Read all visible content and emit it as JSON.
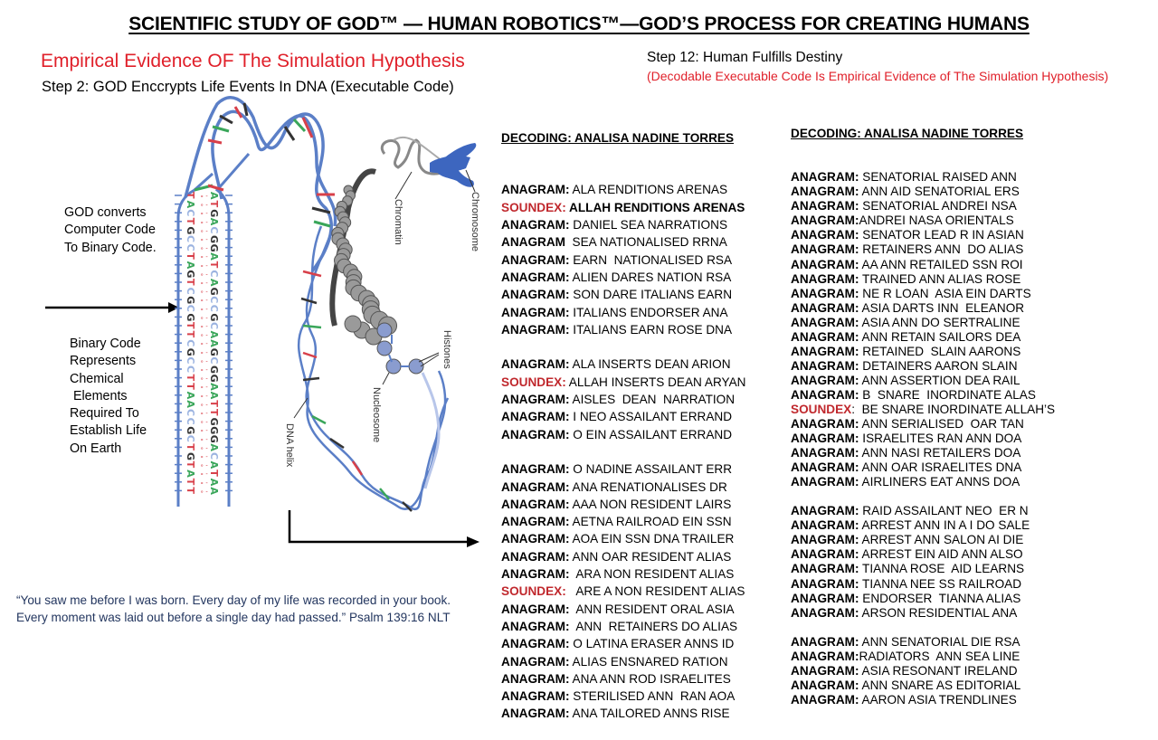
{
  "header": {
    "title": "SCIENTIFIC STUDY OF GOD™ — HUMAN ROBOTICS™—GOD’S PROCESS FOR CREATING HUMANS"
  },
  "left": {
    "subtitle": "Empirical Evidence OF The Simulation Hypothesis",
    "step2": "Step 2: GOD Enccrypts  Life Events  In DNA (Executable Code)",
    "god_converts": [
      "GOD converts",
      "Computer Code",
      "To Binary Code."
    ],
    "binary_code": [
      "Binary Code",
      "Represents",
      "Chemical",
      " Elements",
      "Required To",
      "Establish Life",
      "On Earth"
    ],
    "quote_line1": "“You saw me before I was born. Every day of my life was recorded in your book.",
    "quote_line2": "Every moment was laid out before a single day had passed.” Psalm 139:16 NLT"
  },
  "diagram": {
    "labels": {
      "chromatin": "Chromatin",
      "chromosome": "Chromosome",
      "histones": "Histones",
      "nucleosome": "Nucleosome",
      "dna_helix": "DNA helix"
    },
    "ladder_left": [
      "T",
      "A",
      "C",
      "T",
      "G",
      "C",
      "C",
      "T",
      "A",
      "G",
      "T",
      "C",
      "G",
      "C",
      "G",
      "T",
      "T",
      "C",
      "G",
      "C",
      "C",
      "T",
      "T",
      "A",
      "A",
      "C",
      "C",
      "G",
      "C",
      "T",
      "G",
      "T",
      "A",
      "T",
      "T"
    ],
    "ladder_right": [
      "A",
      "T",
      "G",
      "A",
      "C",
      "G",
      "G",
      "A",
      "T",
      "C",
      "A",
      "G",
      "C",
      "C",
      "G",
      "C",
      "A",
      "A",
      "G",
      "C",
      "G",
      "G",
      "A",
      "A",
      "T",
      "T",
      "G",
      "G",
      "G",
      "A",
      "C",
      "A",
      "T",
      "A",
      "A"
    ],
    "colors": {
      "strand": "#5b7fc7",
      "a": "#3aa65a",
      "t": "#d8404a",
      "g": "#333333",
      "c": "#9bb3e0"
    }
  },
  "right": {
    "step12": "Step 12: Human Fulfills Destiny",
    "step12_note": "(Decodable Executable Code Is Empirical Evidence of The Simulation Hypothesis)"
  },
  "decoding_col1": {
    "header": "DECODING: ANALISA NADINE TORRES",
    "rows": [
      {
        "label": "ANAGRAM:",
        "text": " ALA RENDITIONS ARENAS",
        "type": "anagram"
      },
      {
        "label": "SOUNDEX:",
        "text": " ALLAH RENDITIONS ARENAS",
        "type": "soundex",
        "bold": true
      },
      {
        "label": "ANAGRAM:",
        "text": " DANIEL SEA NARRATIONS",
        "type": "anagram"
      },
      {
        "label": "ANAGRAM",
        "text": "  SEA NATIONALISED RRNA",
        "type": "anagram"
      },
      {
        "label": "ANAGRAM:",
        "text": " EARN  NATIONALISED RSA",
        "type": "anagram"
      },
      {
        "label": "ANAGRAM:",
        "text": " ALIEN DARES NATION RSA",
        "type": "anagram"
      },
      {
        "label": "ANAGRAM:",
        "text": " SON DARE ITALIANS EARN",
        "type": "anagram"
      },
      {
        "label": "ANAGRAM:",
        "text": " ITALIANS ENDORSER ANA",
        "type": "anagram"
      },
      {
        "label": "ANAGRAM:",
        "text": " ITALIANS EARN ROSE DNA",
        "type": "anagram"
      },
      {
        "type": "gap"
      },
      {
        "label": "ANAGRAM:",
        "text": " ALA INSERTS DEAN ARION",
        "type": "anagram"
      },
      {
        "label": "SOUNDEX:",
        "text": " ALLAH INSERTS DEAN ARYAN",
        "type": "soundex"
      },
      {
        "label": "ANAGRAM:",
        "text": " AISLES  DEAN  NARRATION",
        "type": "anagram"
      },
      {
        "label": "ANAGRAM:",
        "text": " I NEO ASSAILANT ERRAND",
        "type": "anagram"
      },
      {
        "label": "ANAGRAM:",
        "text": " O EIN ASSAILANT ERRAND",
        "type": "anagram"
      },
      {
        "type": "gap"
      },
      {
        "label": "ANAGRAM:",
        "text": " O NADINE ASSAILANT ERR",
        "type": "anagram"
      },
      {
        "label": "ANAGRAM:",
        "text": " ANA RENATIONALISES DR",
        "type": "anagram"
      },
      {
        "label": "ANAGRAM:",
        "text": " AAA NON RESIDENT LAIRS",
        "type": "anagram"
      },
      {
        "label": "ANAGRAM:",
        "text": " AETNA RAILROAD EIN SSN",
        "type": "anagram"
      },
      {
        "label": "ANAGRAM:",
        "text": " AOA EIN SSN DNA TRAILER",
        "type": "anagram"
      },
      {
        "label": "ANAGRAM:",
        "text": " ANN OAR RESIDENT ALIAS",
        "type": "anagram"
      },
      {
        "label": "ANAGRAM:",
        "text": "  ARA NON RESIDENT ALIAS",
        "type": "anagram"
      },
      {
        "label": "SOUNDEX:",
        "text": "   ARE A NON RESIDENT ALIAS",
        "type": "soundex"
      },
      {
        "label": "ANAGRAM:",
        "text": "  ANN RESIDENT ORAL ASIA",
        "type": "anagram"
      },
      {
        "label": "ANAGRAM:",
        "text": "  ANN  RETAINERS DO ALIAS",
        "type": "anagram"
      },
      {
        "label": "ANAGRAM:",
        "text": " O LATINA ERASER ANNS ID",
        "type": "anagram"
      },
      {
        "label": "ANAGRAM:",
        "text": " ALIAS ENSNARED RATION",
        "type": "anagram"
      },
      {
        "label": "ANAGRAM:",
        "text": " ANA ANN ROD ISRAELITES",
        "type": "anagram"
      },
      {
        "label": "ANAGRAM:",
        "text": " STERILISED ANN  RAN AOA",
        "type": "anagram"
      },
      {
        "label": "ANAGRAM:",
        "text": " ANA TAILORED ANNS RISE",
        "type": "anagram"
      }
    ]
  },
  "decoding_col2": {
    "header": "DECODING: ANALISA NADINE TORRES",
    "rows": [
      {
        "label": "ANAGRAM:",
        "text": " SENATORIAL RAISED ANN",
        "type": "anagram"
      },
      {
        "label": "ANAGRAM:",
        "text": " ANN AID SENATORIAL ERS",
        "type": "anagram"
      },
      {
        "label": "ANAGRAM:",
        "text": " SENATORIAL ANDREI NSA",
        "type": "anagram"
      },
      {
        "label": "ANAGRAM:",
        "text": "ANDREI NASA ORIENTALS",
        "type": "anagram"
      },
      {
        "label": "ANAGRAM:",
        "text": " SENATOR LEAD R IN ASIAN",
        "type": "anagram"
      },
      {
        "label": "ANAGRAM:",
        "text": " RETAINERS ANN  DO ALIAS",
        "type": "anagram"
      },
      {
        "label": "ANAGRAM:",
        "text": " AA ANN RETAILED SSN ROI",
        "type": "anagram"
      },
      {
        "label": "ANAGRAM:",
        "text": " TRAINED ANN ALIAS ROSE",
        "type": "anagram"
      },
      {
        "label": "ANAGRAM:",
        "text": " NE R LOAN  ASIA EIN DARTS",
        "type": "anagram"
      },
      {
        "label": "ANAGRAM:",
        "text": " ASIA DARTS INN  ELEANOR",
        "type": "anagram"
      },
      {
        "label": "ANAGRAM:",
        "text": " ASIA ANN DO SERTRALINE",
        "type": "anagram"
      },
      {
        "label": "ANAGRAM:",
        "text": " ANN RETAIN SAILORS DEA",
        "type": "anagram"
      },
      {
        "label": "ANAGRAM:",
        "text": " RETAINED  SLAIN AARONS",
        "type": "anagram"
      },
      {
        "label": "ANAGRAM:",
        "text": " DETAINERS AARON SLAIN",
        "type": "anagram"
      },
      {
        "label": "ANAGRAM:",
        "text": " ANN ASSERTION DEA RAIL",
        "type": "anagram"
      },
      {
        "label": "ANAGRAM:",
        "text": " B  SNARE  INORDINATE ALAS",
        "type": "anagram"
      },
      {
        "label": "SOUNDEX",
        "text": ":  BE SNARE INORDINATE ALLAH’S",
        "type": "soundex"
      },
      {
        "label": "ANAGRAM:",
        "text": " ANN SERIALISED  OAR TAN",
        "type": "anagram"
      },
      {
        "label": "ANAGRAM:",
        "text": " ISRAELITES RAN ANN DOA",
        "type": "anagram"
      },
      {
        "label": "ANAGRAM:",
        "text": " ANN NASI RETAILERS DOA",
        "type": "anagram"
      },
      {
        "label": "ANAGRAM:",
        "text": " ANN OAR ISRAELITES DNA",
        "type": "anagram"
      },
      {
        "label": "ANAGRAM:",
        "text": " AIRLINERS EAT ANNS DOA",
        "type": "anagram"
      },
      {
        "type": "gap"
      },
      {
        "label": "ANAGRAM:",
        "text": " RAID ASSAILANT NEO  ER N",
        "type": "anagram"
      },
      {
        "label": "ANAGRAM:",
        "text": " ARREST ANN IN A I DO SALE",
        "type": "anagram"
      },
      {
        "label": "ANAGRAM:",
        "text": " ARREST ANN SALON AI DIE",
        "type": "anagram"
      },
      {
        "label": "ANAGRAM:",
        "text": " ARREST EIN AID ANN ALSO",
        "type": "anagram"
      },
      {
        "label": "ANAGRAM:",
        "text": " TIANNA ROSE  AID LEARNS",
        "type": "anagram"
      },
      {
        "label": "ANAGRAM:",
        "text": " TIANNA NEE SS RAILROAD",
        "type": "anagram"
      },
      {
        "label": "ANAGRAM:",
        "text": " ENDORSER  TIANNA ALIAS",
        "type": "anagram"
      },
      {
        "label": "ANAGRAM:",
        "text": " ARSON RESIDENTIAL ANA",
        "type": "anagram"
      },
      {
        "type": "gap"
      },
      {
        "label": "ANAGRAM:",
        "text": " ANN SENATORIAL DIE RSA",
        "type": "anagram"
      },
      {
        "label": "ANAGRAM:",
        "text": "RADIATORS  ANN SEA LINE",
        "type": "anagram"
      },
      {
        "label": "ANAGRAM:",
        "text": " ASIA RESONANT IRELAND",
        "type": "anagram"
      },
      {
        "label": "ANAGRAM:",
        "text": " ANN SNARE AS EDITORIAL",
        "type": "anagram"
      },
      {
        "label": "ANAGRAM:",
        "text": " AARON ASIA TRENDLINES",
        "type": "anagram"
      }
    ]
  }
}
